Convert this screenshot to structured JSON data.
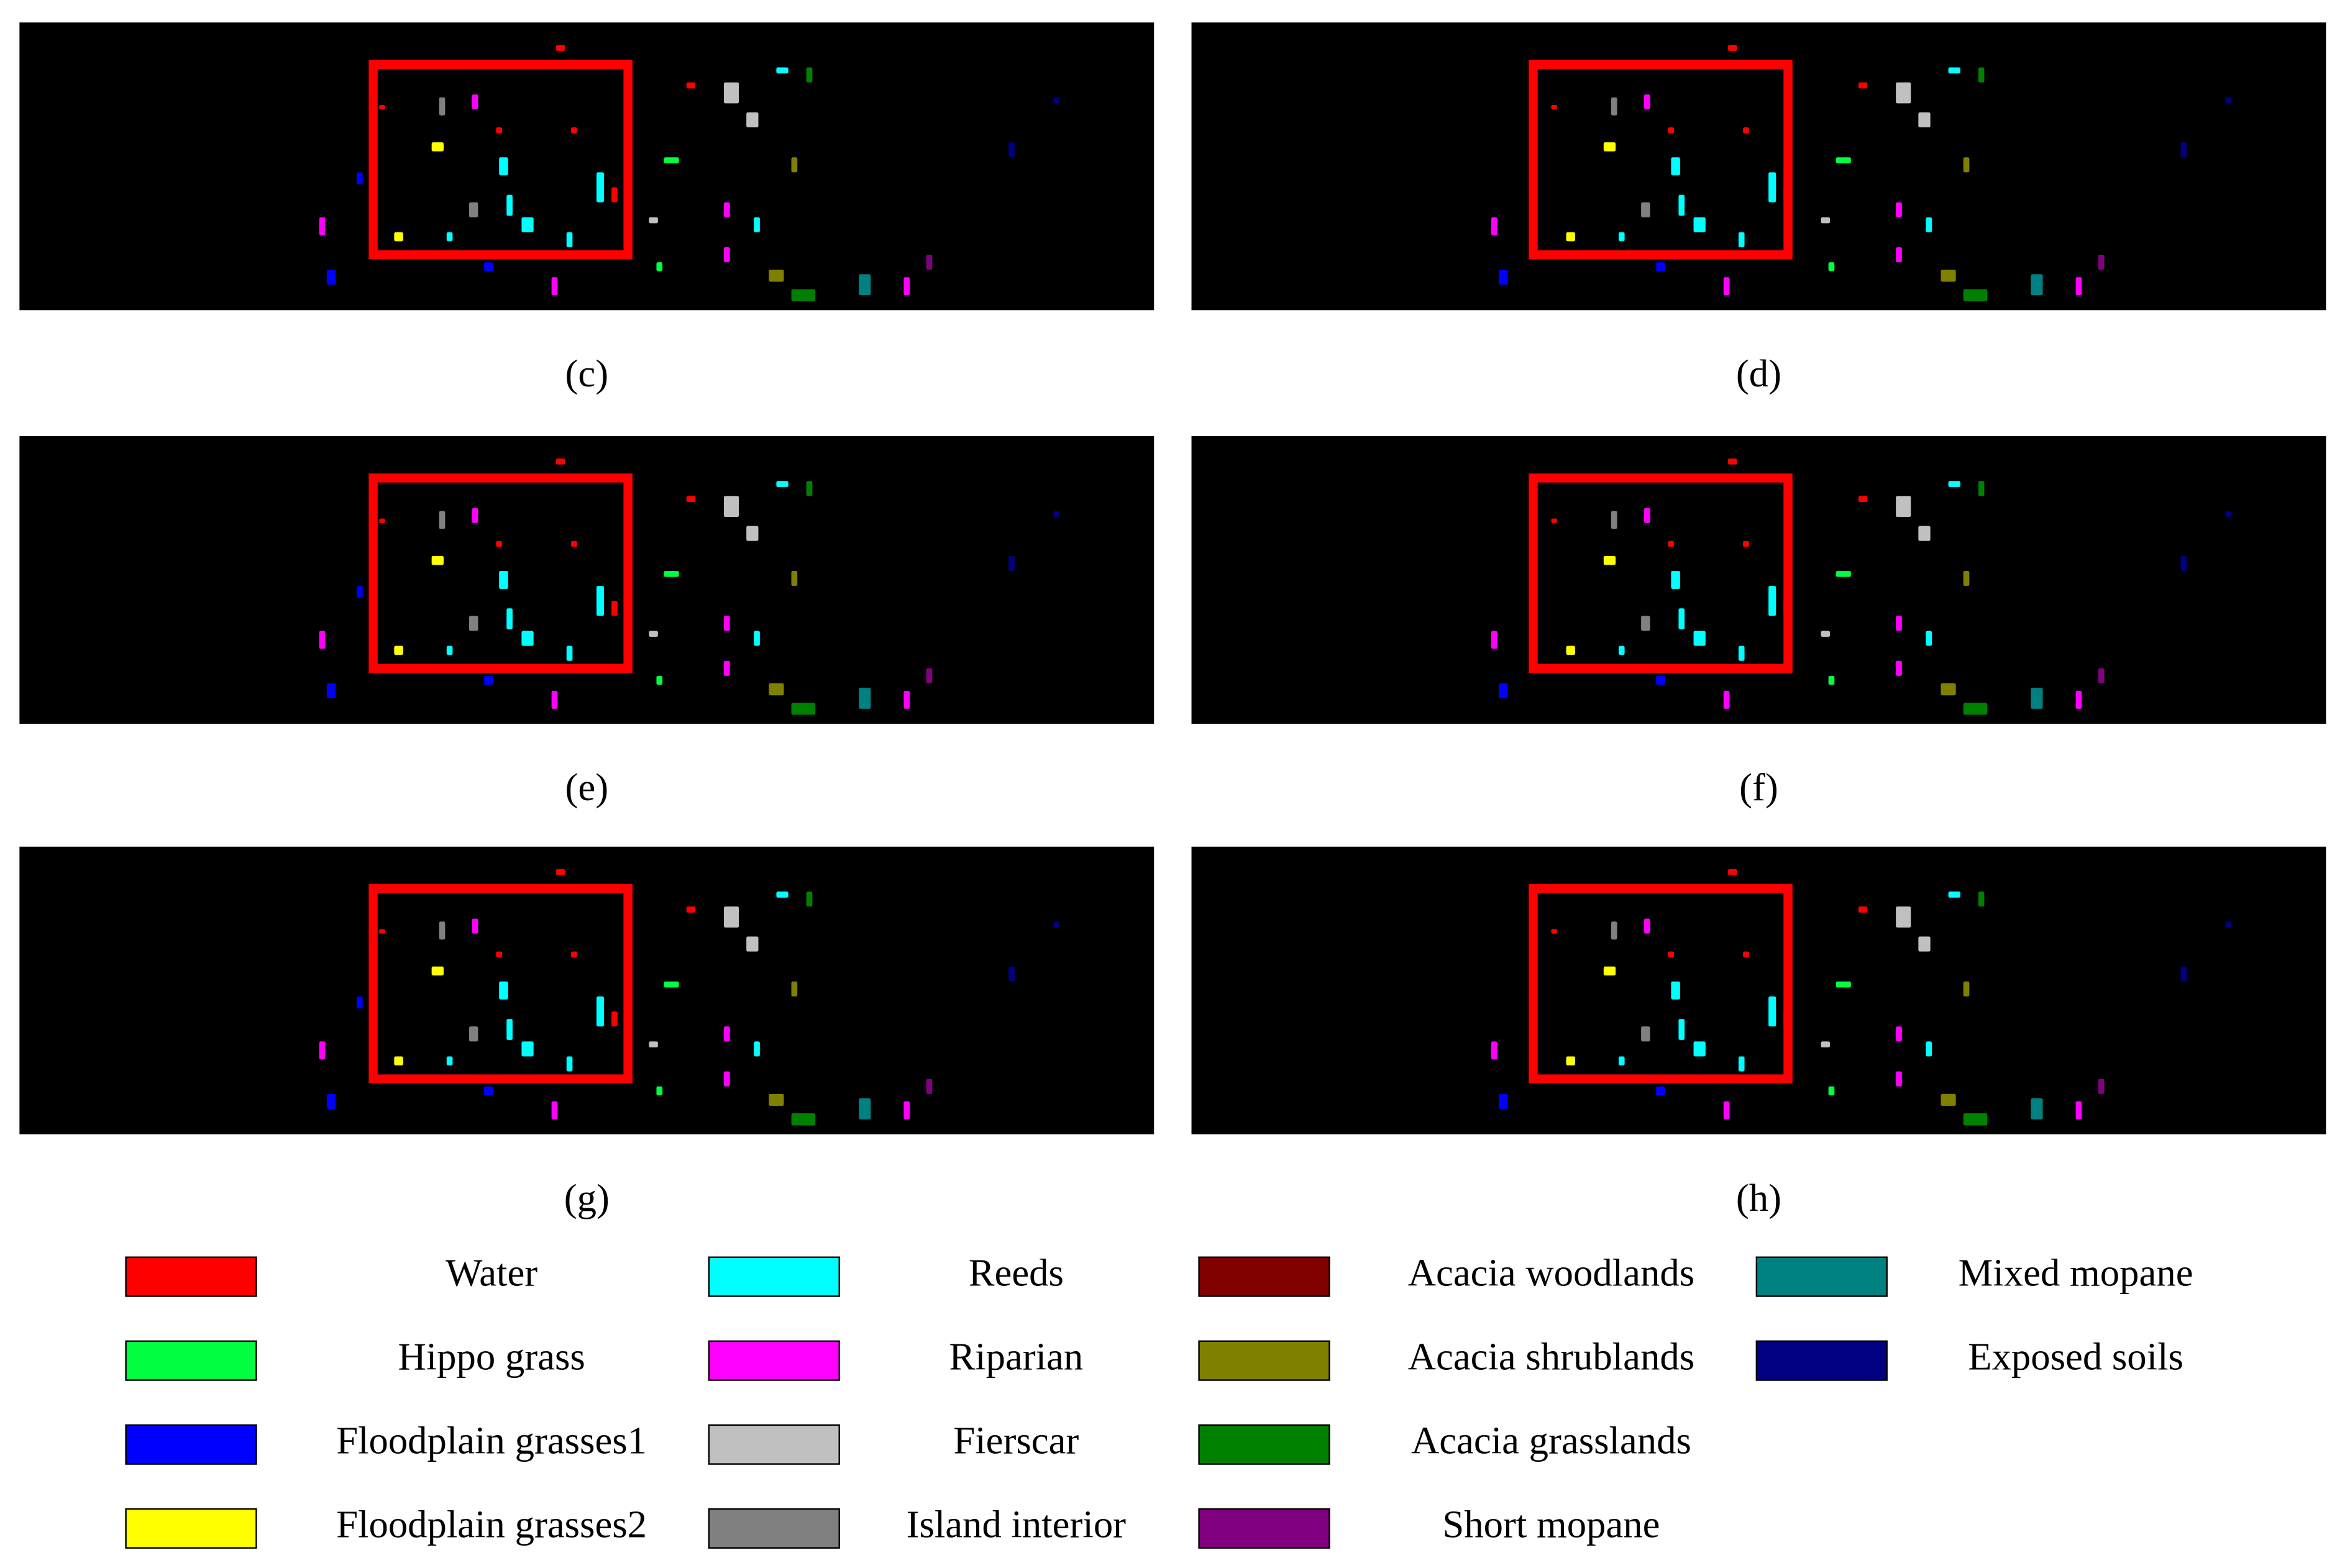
{
  "panels": [
    {
      "label": "(c)"
    },
    {
      "label": "(d)"
    },
    {
      "label": "(e)"
    },
    {
      "label": "(f)"
    },
    {
      "label": "(g)"
    },
    {
      "label": "(h)"
    }
  ],
  "legend": [
    {
      "name": "Water",
      "color": "#ff0000"
    },
    {
      "name": "Hippo grass",
      "color": "#00ff40"
    },
    {
      "name": "Floodplain grasses1",
      "color": "#0000ff"
    },
    {
      "name": "Floodplain grasses2",
      "color": "#ffff00"
    },
    {
      "name": "Reeds",
      "color": "#00ffff"
    },
    {
      "name": "Riparian",
      "color": "#ff00ff"
    },
    {
      "name": "Fierscar",
      "color": "#c0c0c0"
    },
    {
      "name": "Island interior",
      "color": "#808080"
    },
    {
      "name": "Acacia woodlands",
      "color": "#800000"
    },
    {
      "name": "Acacia shrublands",
      "color": "#808000"
    },
    {
      "name": "Acacia grasslands",
      "color": "#008000"
    },
    {
      "name": "Short mopane",
      "color": "#800080"
    },
    {
      "name": "Mixed mopane",
      "color": "#008080"
    },
    {
      "name": "Exposed soils",
      "color": "#000080"
    }
  ]
}
